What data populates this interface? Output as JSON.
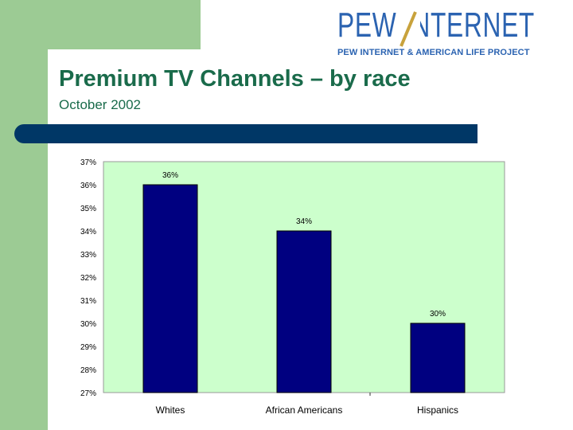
{
  "header": {
    "logo_word": "PEW INTERNET",
    "logo_tagline": "PEW INTERNET & AMERICAN LIFE PROJECT",
    "title": "Premium TV Channels – by race",
    "subtitle": "October 2002"
  },
  "colors": {
    "accent_green": "#9ccb94",
    "title_green": "#1a6b4b",
    "divider_navy": "#003766",
    "logo_blue": "#2b63b1",
    "logo_slash": "#c8a23c",
    "plot_bg": "#ccffcc",
    "bar_fill": "#000080"
  },
  "chart_data": {
    "type": "bar",
    "title": "",
    "xlabel": "",
    "ylabel": "",
    "ylim": [
      27,
      37
    ],
    "yticks": [
      "37%",
      "36%",
      "35%",
      "34%",
      "33%",
      "32%",
      "31%",
      "30%",
      "29%",
      "28%",
      "27%"
    ],
    "categories": [
      "Whites",
      "African Americans",
      "Hispanics"
    ],
    "values": [
      36,
      34,
      30
    ],
    "data_labels": [
      "36%",
      "34%",
      "30%"
    ],
    "grid": false,
    "legend": "none"
  }
}
